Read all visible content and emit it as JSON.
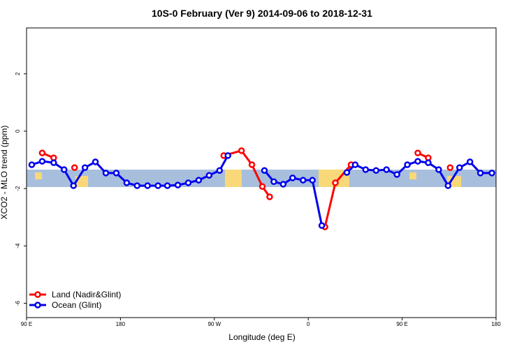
{
  "chart_data": {
    "type": "line",
    "title": "10S-0 February (Ver 9)   2014-09-06 to 2018-12-31",
    "x_label": "Longitude (deg E)",
    "y_label": "XCO2 - MLO trend (ppm)",
    "xlim": [
      90,
      540
    ],
    "xticks": [
      {
        "value": 90,
        "label": "90 E"
      },
      180,
      {
        "value": 270,
        "label": "90 W"
      },
      {
        "value": 360,
        "label": "0"
      },
      {
        "value": 450,
        "label": "90 E"
      },
      {
        "value": 540,
        "label": "180"
      }
    ],
    "ylim": [
      -6.5,
      3.6
    ],
    "yticks": [
      -6,
      -4,
      -2,
      0,
      2
    ],
    "legend": "bottom-left",
    "series": [
      {
        "name": "Land (Nadir&Glint)",
        "color": "#ff0000",
        "x": [
          105,
          116,
          null,
          136,
          null,
          279,
          296,
          306,
          316,
          323,
          null,
          376,
          386,
          401,
          null,
          465,
          475,
          null,
          496
        ],
        "values": [
          -0.76,
          -0.93,
          null,
          -1.27,
          null,
          -0.85,
          -0.68,
          -1.17,
          -1.93,
          -2.29,
          null,
          -3.34,
          -1.8,
          -1.17,
          null,
          -0.76,
          -0.93,
          null,
          -1.27
        ]
      },
      {
        "name": "Ocean (Glint)",
        "color": "#0000ee",
        "x": [
          95,
          105,
          116,
          126,
          135,
          146,
          156,
          166,
          176,
          186,
          196,
          206,
          216,
          225,
          235,
          245,
          255,
          265,
          275,
          283,
          null,
          318,
          327,
          336,
          345,
          355,
          364,
          373,
          null,
          397,
          405,
          415,
          425,
          435,
          445,
          455,
          465,
          475,
          485,
          494,
          505,
          515,
          525,
          536
        ],
        "values": [
          -1.17,
          -1.05,
          -1.1,
          -1.34,
          -1.9,
          -1.27,
          -1.07,
          -1.46,
          -1.46,
          -1.8,
          -1.9,
          -1.9,
          -1.9,
          -1.9,
          -1.88,
          -1.8,
          -1.71,
          -1.54,
          -1.37,
          -0.85,
          null,
          -1.37,
          -1.76,
          -1.85,
          -1.63,
          -1.71,
          -1.71,
          -3.29,
          null,
          -1.44,
          -1.17,
          -1.34,
          -1.37,
          -1.34,
          -1.51,
          -1.17,
          -1.05,
          -1.1,
          -1.34,
          -1.9,
          -1.27,
          -1.07,
          -1.46,
          -1.46
        ]
      }
    ]
  }
}
